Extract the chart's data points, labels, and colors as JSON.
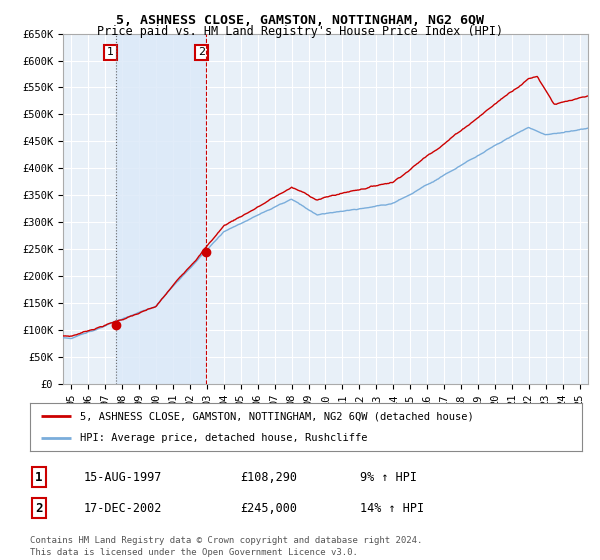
{
  "title": "5, ASHNESS CLOSE, GAMSTON, NOTTINGHAM, NG2 6QW",
  "subtitle": "Price paid vs. HM Land Registry's House Price Index (HPI)",
  "ylim": [
    0,
    650000
  ],
  "yticks": [
    0,
    50000,
    100000,
    150000,
    200000,
    250000,
    300000,
    350000,
    400000,
    450000,
    500000,
    550000,
    600000,
    650000
  ],
  "ytick_labels": [
    "£0",
    "£50K",
    "£100K",
    "£150K",
    "£200K",
    "£250K",
    "£300K",
    "£350K",
    "£400K",
    "£450K",
    "£500K",
    "£550K",
    "£600K",
    "£650K"
  ],
  "sale1_date": 1997.62,
  "sale1_price": 108290,
  "sale2_date": 2002.96,
  "sale2_price": 245000,
  "legend_red": "5, ASHNESS CLOSE, GAMSTON, NOTTINGHAM, NG2 6QW (detached house)",
  "legend_blue": "HPI: Average price, detached house, Rushcliffe",
  "table_row1_num": "1",
  "table_row1_date": "15-AUG-1997",
  "table_row1_price": "£108,290",
  "table_row1_hpi": "9% ↑ HPI",
  "table_row2_num": "2",
  "table_row2_date": "17-DEC-2002",
  "table_row2_price": "£245,000",
  "table_row2_hpi": "14% ↑ HPI",
  "footer": "Contains HM Land Registry data © Crown copyright and database right 2024.\nThis data is licensed under the Open Government Licence v3.0.",
  "red_color": "#cc0000",
  "blue_color": "#7aaddb",
  "shade_color": "#dce9f8",
  "plot_bg": "#e8f0f8",
  "grid_color": "#ffffff",
  "x_start": 1994.5,
  "x_end": 2025.5,
  "xtick_years": [
    1995,
    1996,
    1997,
    1998,
    1999,
    2000,
    2001,
    2002,
    2003,
    2004,
    2005,
    2006,
    2007,
    2008,
    2009,
    2010,
    2011,
    2012,
    2013,
    2014,
    2015,
    2016,
    2017,
    2018,
    2019,
    2020,
    2021,
    2022,
    2023,
    2024,
    2025
  ]
}
